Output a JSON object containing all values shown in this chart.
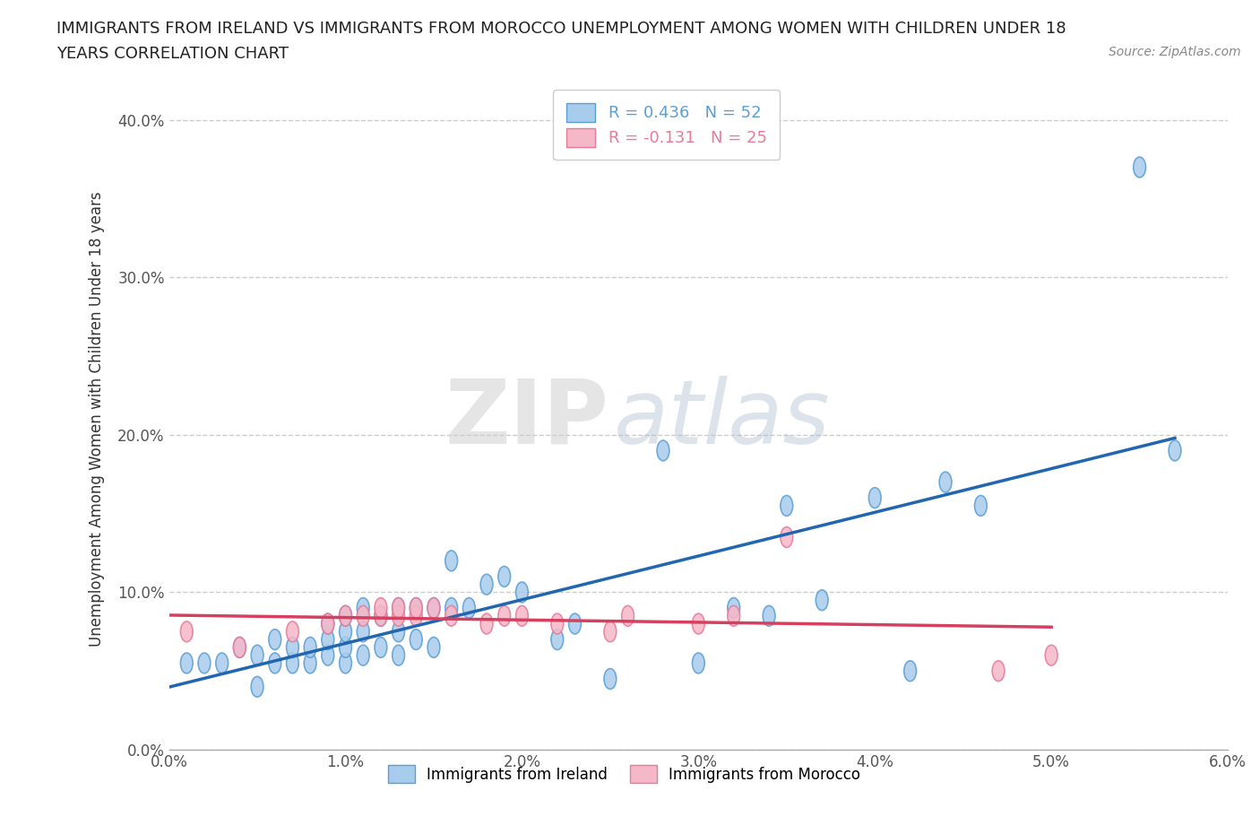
{
  "title_line1": "IMMIGRANTS FROM IRELAND VS IMMIGRANTS FROM MOROCCO UNEMPLOYMENT AMONG WOMEN WITH CHILDREN UNDER 18",
  "title_line2": "YEARS CORRELATION CHART",
  "source": "Source: ZipAtlas.com",
  "ylabel": "Unemployment Among Women with Children Under 18 years",
  "xlim": [
    0.0,
    0.06
  ],
  "ylim": [
    0.0,
    0.42
  ],
  "xticks": [
    0.0,
    0.01,
    0.02,
    0.03,
    0.04,
    0.05,
    0.06
  ],
  "yticks": [
    0.0,
    0.1,
    0.2,
    0.3,
    0.4
  ],
  "ytick_labels": [
    "0.0%",
    "10.0%",
    "20.0%",
    "30.0%",
    "40.0%"
  ],
  "xtick_labels": [
    "0.0%",
    "1.0%",
    "2.0%",
    "3.0%",
    "4.0%",
    "5.0%",
    "6.0%"
  ],
  "ireland_color": "#a8ccec",
  "ireland_edge_color": "#5a9fd4",
  "morocco_color": "#f5b8c8",
  "morocco_edge_color": "#e87a9a",
  "ireland_R": 0.436,
  "ireland_N": 52,
  "morocco_R": -0.131,
  "morocco_N": 25,
  "ireland_line_color": "#2166b0",
  "morocco_line_color": "#d64060",
  "watermark_zip": "ZIP",
  "watermark_atlas": "atlas",
  "background_color": "#ffffff",
  "grid_color": "#cccccc",
  "ireland_x": [
    0.001,
    0.002,
    0.003,
    0.004,
    0.005,
    0.005,
    0.006,
    0.006,
    0.007,
    0.007,
    0.008,
    0.008,
    0.009,
    0.009,
    0.009,
    0.01,
    0.01,
    0.01,
    0.01,
    0.011,
    0.011,
    0.011,
    0.012,
    0.012,
    0.013,
    0.013,
    0.013,
    0.014,
    0.014,
    0.015,
    0.015,
    0.016,
    0.016,
    0.017,
    0.018,
    0.019,
    0.02,
    0.022,
    0.023,
    0.025,
    0.028,
    0.03,
    0.032,
    0.034,
    0.035,
    0.037,
    0.04,
    0.042,
    0.044,
    0.046,
    0.055,
    0.057
  ],
  "ireland_y": [
    0.055,
    0.055,
    0.055,
    0.065,
    0.04,
    0.06,
    0.055,
    0.07,
    0.055,
    0.065,
    0.055,
    0.065,
    0.06,
    0.07,
    0.08,
    0.055,
    0.065,
    0.075,
    0.085,
    0.06,
    0.075,
    0.09,
    0.065,
    0.085,
    0.06,
    0.075,
    0.09,
    0.07,
    0.09,
    0.065,
    0.09,
    0.12,
    0.09,
    0.09,
    0.105,
    0.11,
    0.1,
    0.07,
    0.08,
    0.045,
    0.19,
    0.055,
    0.09,
    0.085,
    0.155,
    0.095,
    0.16,
    0.05,
    0.17,
    0.155,
    0.37,
    0.19
  ],
  "morocco_x": [
    0.001,
    0.004,
    0.007,
    0.009,
    0.01,
    0.011,
    0.012,
    0.012,
    0.013,
    0.013,
    0.014,
    0.014,
    0.015,
    0.016,
    0.018,
    0.019,
    0.02,
    0.022,
    0.025,
    0.026,
    0.03,
    0.032,
    0.035,
    0.047,
    0.05
  ],
  "morocco_y": [
    0.075,
    0.065,
    0.075,
    0.08,
    0.085,
    0.085,
    0.085,
    0.09,
    0.085,
    0.09,
    0.085,
    0.09,
    0.09,
    0.085,
    0.08,
    0.085,
    0.085,
    0.08,
    0.075,
    0.085,
    0.08,
    0.085,
    0.135,
    0.05,
    0.06
  ]
}
